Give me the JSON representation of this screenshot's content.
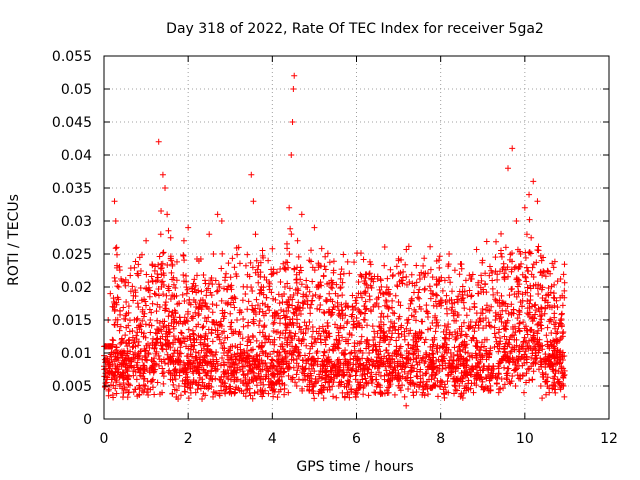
{
  "chart_data": {
    "type": "scatter",
    "title": "Day 318 of 2022, Rate Of TEC Index for receiver 5ga2",
    "xlabel": "GPS time / hours",
    "ylabel": "ROTI / TECUs",
    "xlim": [
      0,
      12
    ],
    "ylim": [
      0,
      0.055
    ],
    "x_ticks": [
      0,
      2,
      4,
      6,
      8,
      10,
      12
    ],
    "y_ticks": [
      0,
      0.005,
      0.01,
      0.015,
      0.02,
      0.025,
      0.03,
      0.035,
      0.04,
      0.045,
      0.05,
      0.055
    ],
    "x_tick_labels": [
      "0",
      "2",
      "4",
      "6",
      "8",
      "10",
      "12"
    ],
    "y_tick_labels": [
      "0",
      "0.005",
      "0.01",
      "0.015",
      "0.02",
      "0.025",
      "0.03",
      "0.035",
      "0.04",
      "0.045",
      "0.05",
      "0.055"
    ],
    "grid": true,
    "marker": "+",
    "color": "#ff0000",
    "series": [
      {
        "name": "ROTI",
        "x": [
          0.0,
          0.05,
          0.1,
          0.15,
          0.2,
          0.25,
          0.28,
          0.3,
          0.35,
          0.4,
          0.45,
          0.5,
          0.6,
          0.7,
          0.8,
          0.9,
          1.0,
          1.1,
          1.2,
          1.3,
          1.35,
          1.4,
          1.45,
          1.5,
          1.6,
          1.7,
          1.8,
          1.9,
          2.0,
          2.1,
          2.2,
          2.3,
          2.4,
          2.5,
          2.6,
          2.7,
          2.8,
          2.9,
          3.0,
          3.1,
          3.2,
          3.3,
          3.4,
          3.5,
          3.55,
          3.6,
          3.7,
          3.8,
          3.9,
          4.0,
          4.1,
          4.2,
          4.3,
          4.4,
          4.45,
          4.48,
          4.5,
          4.52,
          4.6,
          4.7,
          4.8,
          4.9,
          5.0,
          5.1,
          5.2,
          5.3,
          5.4,
          5.5,
          5.6,
          5.7,
          5.8,
          5.9,
          6.0,
          6.1,
          6.2,
          6.3,
          6.4,
          6.5,
          6.6,
          6.7,
          6.8,
          6.9,
          7.0,
          7.1,
          7.2,
          7.3,
          7.4,
          7.5,
          7.6,
          7.7,
          7.8,
          7.9,
          8.0,
          8.1,
          8.2,
          8.3,
          8.4,
          8.5,
          8.6,
          8.7,
          8.8,
          8.9,
          9.0,
          9.1,
          9.2,
          9.3,
          9.4,
          9.5,
          9.55,
          9.6,
          9.7,
          9.8,
          9.9,
          10.0,
          10.05,
          10.1,
          10.2,
          10.3,
          10.4,
          10.5,
          10.6,
          10.7,
          10.8,
          10.9,
          0.02,
          0.07,
          0.12,
          0.22,
          0.32,
          0.42,
          0.55,
          0.65,
          0.75,
          0.85,
          0.95,
          1.05,
          1.15,
          1.25,
          1.55,
          1.65,
          1.75,
          1.85,
          1.95,
          2.05,
          2.15,
          2.25,
          2.35,
          2.45,
          2.55,
          2.65,
          2.75,
          2.85,
          2.95,
          3.05,
          3.15,
          3.25,
          3.35,
          3.45,
          3.65,
          3.75,
          3.85,
          3.95,
          4.05,
          4.15,
          4.25,
          4.35,
          4.55,
          4.65,
          4.75,
          4.85,
          4.95,
          5.05,
          5.15,
          5.25,
          5.35,
          5.45,
          5.55,
          5.65,
          5.75,
          5.85,
          5.95,
          6.05,
          6.15,
          6.25,
          6.35,
          6.45,
          6.55,
          6.65,
          6.75,
          6.85,
          6.95,
          7.05,
          7.15,
          7.25,
          7.35,
          7.45,
          7.55,
          7.65,
          7.75,
          7.85,
          7.95,
          8.05,
          8.15,
          8.25,
          8.35,
          8.45,
          8.55,
          8.65,
          8.75,
          8.85,
          8.95,
          9.05,
          9.15,
          9.25,
          9.35,
          9.45,
          9.65,
          9.75,
          9.85,
          9.95,
          10.15,
          10.25,
          10.35,
          10.45,
          10.55,
          10.65,
          10.75,
          10.85,
          0.03,
          0.18,
          0.38,
          0.58,
          0.78,
          0.98,
          1.18,
          1.38,
          1.58,
          1.78,
          1.98,
          2.18,
          2.38,
          2.58,
          2.78,
          2.98,
          3.18,
          3.38,
          3.58,
          3.78,
          3.98,
          4.18,
          4.38,
          4.58,
          4.78,
          4.98,
          5.18,
          5.38,
          5.58,
          5.78,
          5.98,
          6.18,
          6.38,
          6.58,
          6.78,
          6.98,
          7.18,
          7.38,
          7.58,
          7.78,
          7.98,
          8.18,
          8.38,
          8.58,
          8.78,
          8.98,
          9.18,
          9.38,
          9.58,
          9.78,
          9.98,
          10.18,
          10.38,
          10.58,
          10.78,
          10.92
        ],
        "y": [
          0.008,
          0.006,
          0.015,
          0.019,
          0.012,
          0.033,
          0.03,
          0.026,
          0.02,
          0.014,
          0.01,
          0.009,
          0.012,
          0.011,
          0.022,
          0.018,
          0.027,
          0.015,
          0.019,
          0.042,
          0.028,
          0.037,
          0.035,
          0.031,
          0.024,
          0.016,
          0.01,
          0.027,
          0.029,
          0.02,
          0.012,
          0.018,
          0.021,
          0.028,
          0.025,
          0.031,
          0.03,
          0.022,
          0.014,
          0.023,
          0.026,
          0.018,
          0.02,
          0.037,
          0.033,
          0.028,
          0.019,
          0.014,
          0.024,
          0.022,
          0.016,
          0.011,
          0.02,
          0.032,
          0.04,
          0.045,
          0.05,
          0.052,
          0.027,
          0.031,
          0.02,
          0.016,
          0.029,
          0.023,
          0.014,
          0.018,
          0.021,
          0.019,
          0.016,
          0.022,
          0.012,
          0.017,
          0.014,
          0.019,
          0.015,
          0.01,
          0.017,
          0.013,
          0.016,
          0.018,
          0.012,
          0.016,
          0.024,
          0.021,
          0.015,
          0.018,
          0.013,
          0.017,
          0.022,
          0.016,
          0.019,
          0.015,
          0.018,
          0.021,
          0.025,
          0.016,
          0.013,
          0.018,
          0.021,
          0.014,
          0.017,
          0.019,
          0.016,
          0.012,
          0.017,
          0.015,
          0.018,
          0.023,
          0.026,
          0.038,
          0.041,
          0.03,
          0.025,
          0.032,
          0.028,
          0.034,
          0.036,
          0.033,
          0.024,
          0.018,
          0.022,
          0.016,
          0.014,
          0.013,
          0.009,
          0.011,
          0.007,
          0.01,
          0.008,
          0.012,
          0.006,
          0.009,
          0.011,
          0.007,
          0.013,
          0.01,
          0.008,
          0.012,
          0.009,
          0.014,
          0.01,
          0.013,
          0.011,
          0.008,
          0.012,
          0.01,
          0.009,
          0.011,
          0.013,
          0.008,
          0.012,
          0.01,
          0.009,
          0.011,
          0.007,
          0.01,
          0.008,
          0.012,
          0.009,
          0.011,
          0.01,
          0.008,
          0.012,
          0.009,
          0.013,
          0.01,
          0.011,
          0.014,
          0.012,
          0.009,
          0.011,
          0.01,
          0.008,
          0.012,
          0.009,
          0.011,
          0.007,
          0.01,
          0.012,
          0.009,
          0.011,
          0.008,
          0.01,
          0.012,
          0.009,
          0.011,
          0.008,
          0.013,
          0.01,
          0.009,
          0.011,
          0.008,
          0.012,
          0.01,
          0.009,
          0.011,
          0.013,
          0.01,
          0.008,
          0.012,
          0.009,
          0.011,
          0.01,
          0.008,
          0.012,
          0.011,
          0.009,
          0.01,
          0.008,
          0.011,
          0.009,
          0.012,
          0.01,
          0.008,
          0.011,
          0.009,
          0.01,
          0.012,
          0.009,
          0.011,
          0.008,
          0.01,
          0.012,
          0.009,
          0.011,
          0.008,
          0.01,
          0.009,
          0.005,
          0.006,
          0.005,
          0.004,
          0.006,
          0.005,
          0.007,
          0.004,
          0.006,
          0.005,
          0.006,
          0.004,
          0.005,
          0.006,
          0.005,
          0.004,
          0.006,
          0.005,
          0.004,
          0.006,
          0.005,
          0.007,
          0.004,
          0.005,
          0.006,
          0.005,
          0.004,
          0.006,
          0.005,
          0.004,
          0.006,
          0.005,
          0.006,
          0.004,
          0.005,
          0.006,
          0.002,
          0.005,
          0.004,
          0.006,
          0.005,
          0.004,
          0.006,
          0.005,
          0.004,
          0.006,
          0.005,
          0.004,
          0.006,
          0.005,
          0.004,
          0.006,
          0.005,
          0.004,
          0.006,
          0.005
        ]
      }
    ]
  }
}
